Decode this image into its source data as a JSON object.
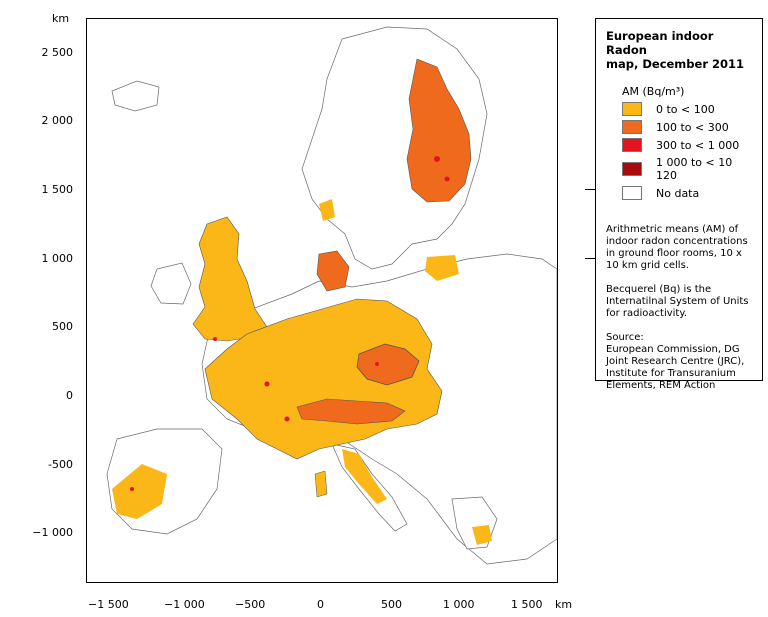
{
  "map": {
    "y_unit": "km",
    "x_unit": "km",
    "y_ticks": [
      "2 500",
      "2 000",
      "1 500",
      "1 000",
      "500",
      "0",
      "-500",
      "−1 000"
    ],
    "x_ticks": [
      "−1 500",
      "−1 000",
      "−500",
      "0",
      "500",
      "1 000",
      "1 500"
    ]
  },
  "legend": {
    "title_line1": "European indoor Radon",
    "title_line2": "map, December 2011",
    "unit_label": "AM (Bq/m³)",
    "classes": [
      {
        "label": "0 to < 100",
        "color": "#fbb717"
      },
      {
        "label": "100 to < 300",
        "color": "#ef6a1c"
      },
      {
        "label": "300 to < 1 000",
        "color": "#e3141f"
      },
      {
        "label": "1 000 to < 10 120",
        "color": "#a80b0b"
      },
      {
        "label": "No data",
        "color": "#ffffff"
      }
    ],
    "note1": "Arithmetric means (AM) of indoor radon concentrations in ground floor rooms, 10 x 10 km grid cells.",
    "note2": "Becquerel (Bq) is the Internatilnal System of Units for radioactivity.",
    "source_title": "Source:",
    "source_body": "European Commission, DG Joint Research Centre (JRC), Institute for Transuranium Elements, REM Action"
  }
}
